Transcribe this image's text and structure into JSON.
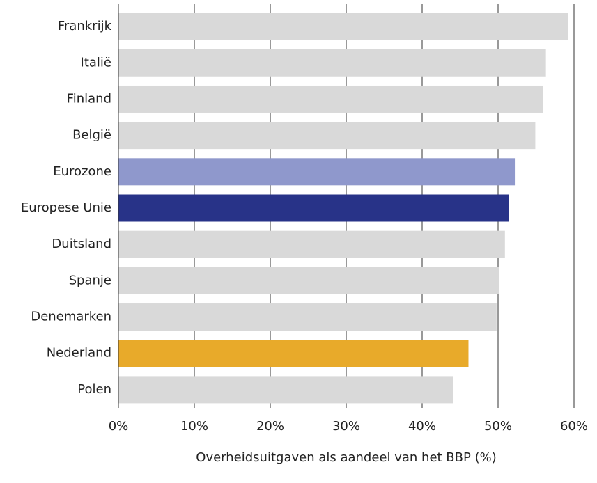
{
  "chart_data": {
    "type": "bar",
    "orientation": "horizontal",
    "x_label": "Overheidsuitgaven als aandeel van het BBP (%)",
    "categories": [
      "Frankrijk",
      "Italië",
      "Finland",
      "België",
      "Eurozone",
      "Europese Unie",
      "Duitsland",
      "Spanje",
      "Denemarken",
      "Nederland",
      "Polen"
    ],
    "values": [
      59.2,
      56.3,
      55.9,
      54.9,
      52.3,
      51.4,
      50.9,
      50.1,
      49.8,
      46.1,
      44.1
    ],
    "colors": [
      "#d9d9d9",
      "#d9d9d9",
      "#d9d9d9",
      "#d9d9d9",
      "#8f98cc",
      "#283388",
      "#d9d9d9",
      "#d9d9d9",
      "#d9d9d9",
      "#e8aa2a",
      "#d9d9d9"
    ],
    "xlim": [
      0,
      60
    ],
    "xticks": [
      {
        "value": 0,
        "label": "0%"
      },
      {
        "value": 10,
        "label": "10%"
      },
      {
        "value": 20,
        "label": "20%"
      },
      {
        "value": 30,
        "label": "30%"
      },
      {
        "value": 40,
        "label": "40%"
      },
      {
        "value": 50,
        "label": "50%"
      },
      {
        "value": 60,
        "label": "60%"
      }
    ],
    "grid": true
  }
}
